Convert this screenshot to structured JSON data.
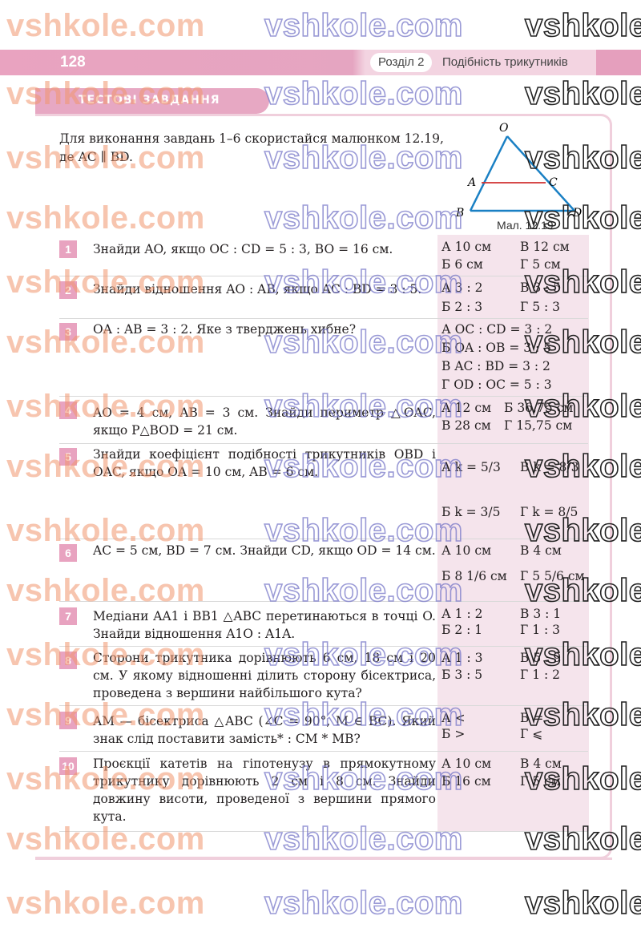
{
  "header": {
    "page_number": "128",
    "section_label": "Розділ 2",
    "section_title": "Подібність трикутників"
  },
  "banner": {
    "title": "ТЕСТОВІ ЗАВДАННЯ"
  },
  "intro": "Для виконання завдань 1–6 скористайся малюнком 12.19, де AC ∥ BD.",
  "figure": {
    "caption": "Мал. 12.19",
    "labels": {
      "O": "O",
      "A": "A",
      "C": "C",
      "B": "B",
      "D": "D"
    }
  },
  "questions": [
    {
      "num": "1",
      "text": "Знайди AO, якщо OC : CD = 5 : 3, BO = 16 см.",
      "options": [
        "А 10 см",
        "В 12 см",
        "Б 6 см",
        "Г 5 см"
      ]
    },
    {
      "num": "2",
      "text": "Знайди відношення AO : AB, якщо AC : BD = 3 : 5.",
      "options": [
        "А 3 : 2",
        "В 3 : 5",
        "Б 2 : 3",
        "Г 5 : 3"
      ]
    },
    {
      "num": "3",
      "text": "OA : AB = 3 : 2. Яке з тверджень хибне?",
      "options": [
        "А OC : CD = 3 : 2",
        "Б OA : OB = 3 : 5",
        "В AC : BD = 3 : 2",
        "Г OD : OC = 5 : 3"
      ]
    },
    {
      "num": "4",
      "text": "AO = 4 см, AB = 3 см. Знайди периметр △OAC, якщо P△BOD = 21 см.",
      "options": [
        "А 12 см",
        "Б 36,75 см",
        "В 28 см",
        "Г 15,75 см"
      ]
    },
    {
      "num": "5",
      "text": "Знайди коефіцієнт подібності трикутників OBD і OAC, якщо OA = 10 см, AB = 6 см.",
      "options": [
        "А k = 5/3",
        "В k = 8/3",
        "Б k = 3/5",
        "Г k = 8/5"
      ]
    },
    {
      "num": "6",
      "text": "AC = 5 см, BD = 7 см. Знайди CD, якщо OD = 14 см.",
      "options": [
        "А 10 см",
        "В 4 см",
        "Б 8 1/6 см",
        "Г 5 5/6 см"
      ]
    },
    {
      "num": "7",
      "text": "Медіани AA1 і BB1 △ABC перетинаються в точці O. Знайди відношення A1O : A1A.",
      "options": [
        "А 1 : 2",
        "В 3 : 1",
        "Б 2 : 1",
        "Г 1 : 3"
      ]
    },
    {
      "num": "8",
      "text": "Сторони трикутника дорівнюють 6 см, 18 см і 20 см. У якому відношенні ділить сторону бісектриса, проведена з вершини найбільшого кута?",
      "options": [
        "А 1 : 3",
        "В 5 : 9",
        "Б 3 : 5",
        "Г 1 : 2"
      ]
    },
    {
      "num": "9",
      "text": "AM — бісектриса △ABC (∠C = 90°, M ∈ BC). Який знак слід поставити замість* : CM * MB?",
      "options": [
        "А <",
        "В =",
        "Б >",
        "Г ⩽"
      ]
    },
    {
      "num": "10",
      "text": "Проєкції катетів на гіпотенузу в прямокутному трикутнику дорівнюють 2 см і 8 см. Знайди довжину висоти, проведеної з вершини прямого кута.",
      "options": [
        "А 10 см",
        "В 4 см",
        "Б 16 см",
        "Г 5 см"
      ]
    }
  ],
  "watermark": "vshkole.com",
  "colors": {
    "accent_pink": "#e8a3c0",
    "answer_bg": "#f5e4ec",
    "frame": "#f0cfdc"
  }
}
